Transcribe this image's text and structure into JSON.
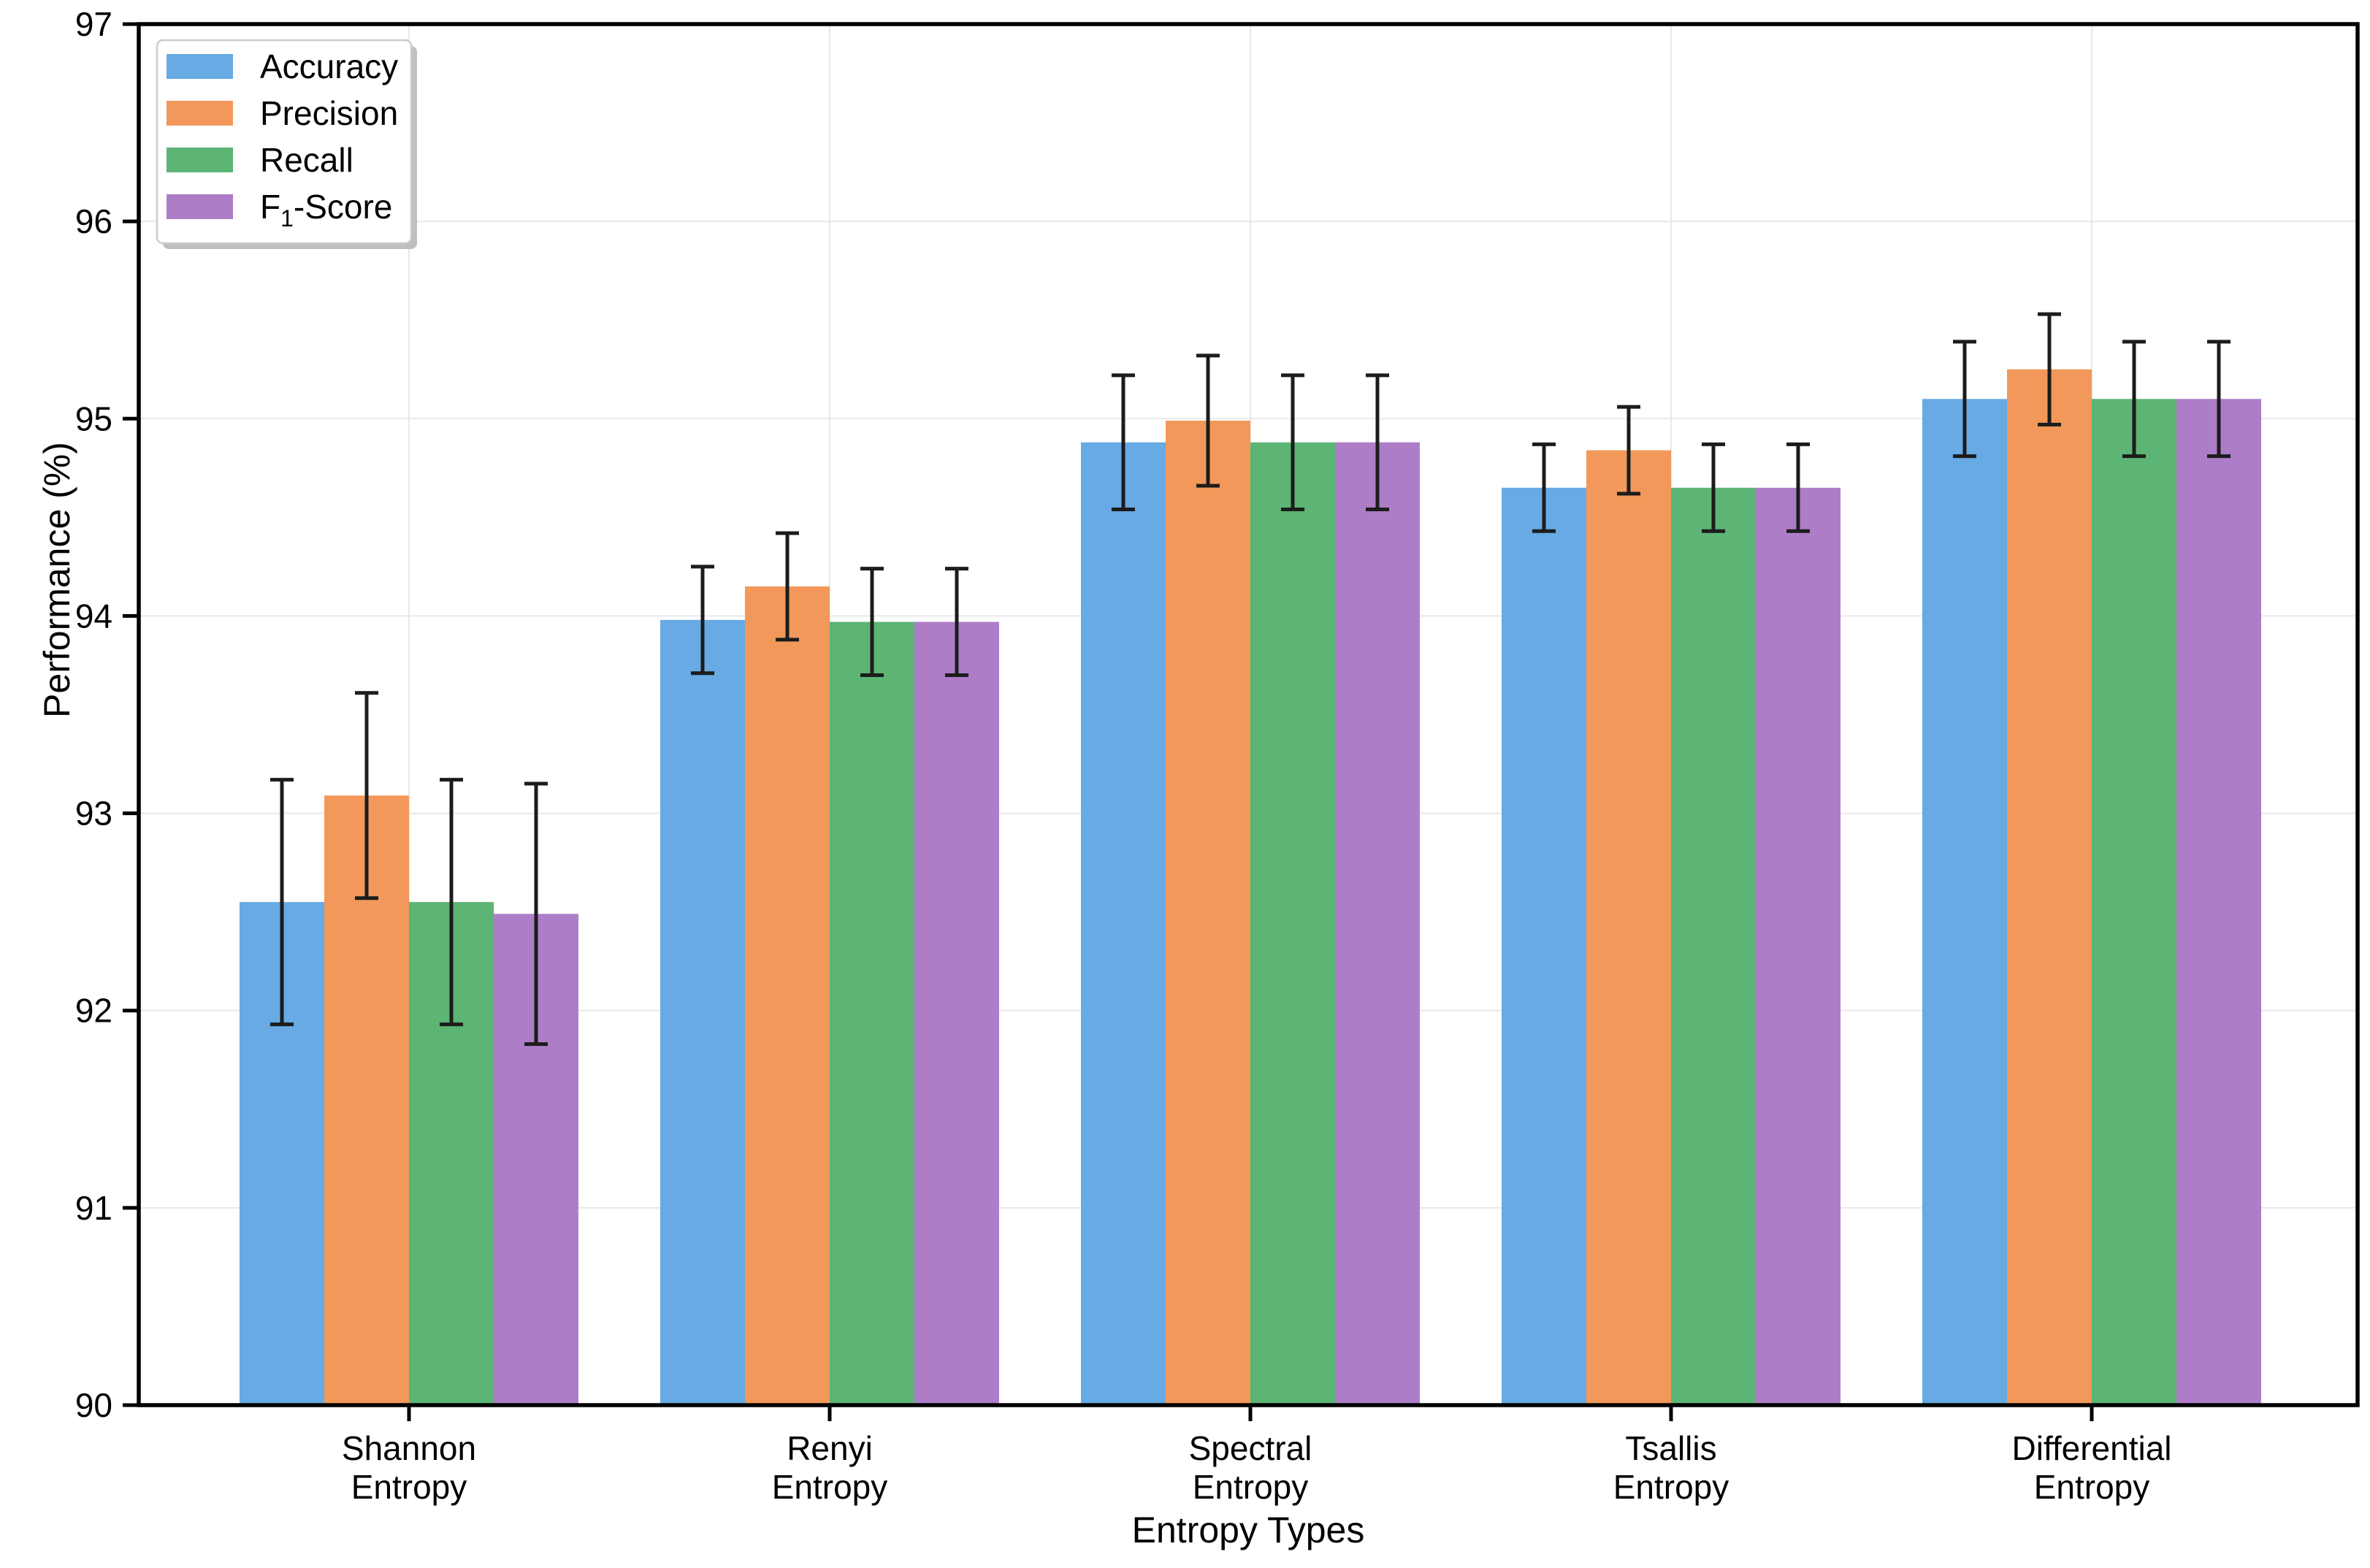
{
  "chart_data": {
    "type": "bar",
    "title": "",
    "xlabel": "Entropy Types",
    "ylabel": "Performance (%)",
    "ylim": [
      90,
      97
    ],
    "yticks": [
      90,
      91,
      92,
      93,
      94,
      95,
      96,
      97
    ],
    "grid": true,
    "grid_color": "#e8e8e8",
    "spine_color": "#000000",
    "error_bar_color": "#1c1c1c",
    "legend": {
      "position": "upper-left",
      "entries": [
        "Accuracy",
        "Precision",
        "Recall",
        "F₁-Score"
      ]
    },
    "categories": [
      "Shannon\nEntropy",
      "Renyi\nEntropy",
      "Spectral\nEntropy",
      "Tsallis\nEntropy",
      "Differential\nEntropy"
    ],
    "series": [
      {
        "name": "Accuracy",
        "color": "#67AAE4",
        "values": [
          92.55,
          93.98,
          94.88,
          94.65,
          95.1
        ],
        "errors": [
          0.62,
          0.27,
          0.34,
          0.22,
          0.29
        ]
      },
      {
        "name": "Precision",
        "color": "#F2985A",
        "values": [
          93.09,
          94.15,
          94.99,
          94.84,
          95.25
        ],
        "errors": [
          0.52,
          0.27,
          0.33,
          0.22,
          0.28
        ]
      },
      {
        "name": "Recall",
        "color": "#5CB475",
        "values": [
          92.55,
          93.97,
          94.88,
          94.65,
          95.1
        ],
        "errors": [
          0.62,
          0.27,
          0.34,
          0.22,
          0.29
        ]
      },
      {
        "name": "F₁-Score",
        "color": "#AE7DC8",
        "values": [
          92.49,
          93.97,
          94.88,
          94.65,
          95.1
        ],
        "errors": [
          0.66,
          0.27,
          0.34,
          0.22,
          0.29
        ]
      }
    ]
  }
}
